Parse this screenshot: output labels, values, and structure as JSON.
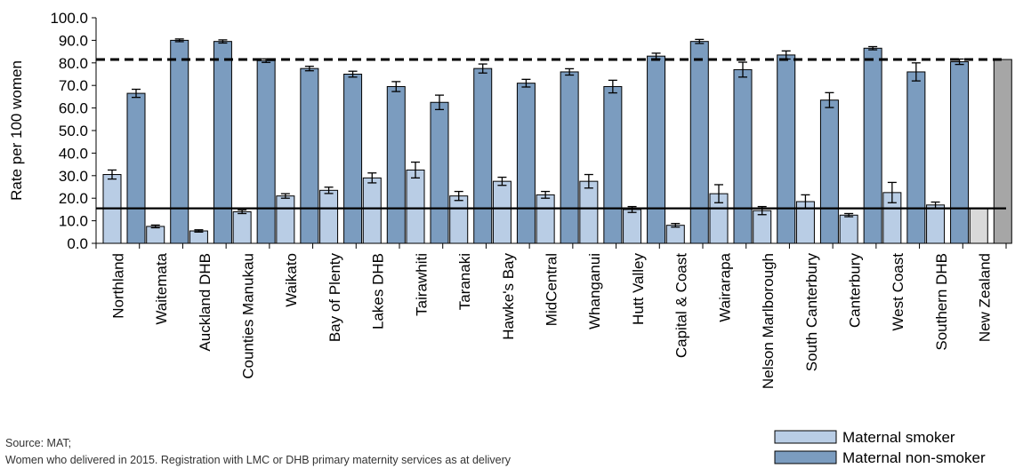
{
  "chart_data": {
    "type": "bar",
    "ylabel": "Rate per 100 women",
    "xlabel": "",
    "title": "",
    "ylim": [
      0,
      100
    ],
    "yticks": [
      "0.0",
      "10.0",
      "20.0",
      "30.0",
      "40.0",
      "50.0",
      "60.0",
      "70.0",
      "80.0",
      "90.0",
      "100.0"
    ],
    "categories": [
      "Northland",
      "Waitemata",
      "Auckland DHB",
      "Counties Manukau",
      "Waikato",
      "Bay of Plenty",
      "Lakes DHB",
      "Tairawhiti",
      "Taranaki",
      "Hawke's Bay",
      "MidCentral",
      "Whanganui",
      "Hutt Valley",
      "Capital & Coast",
      "Wairarapa",
      "Nelson Marlborough",
      "South Canterbury",
      "Canterbury",
      "West Coast",
      "Southern DHB",
      "New Zealand"
    ],
    "series": [
      {
        "name": "Maternal smoker",
        "color": "#b9cde5",
        "values": [
          30.5,
          7.5,
          5.5,
          14.0,
          21.0,
          23.5,
          29.0,
          32.5,
          21.0,
          27.5,
          21.5,
          27.5,
          15.0,
          8.0,
          22.0,
          14.5,
          18.5,
          12.5,
          22.5,
          17.0,
          15.5
        ],
        "error": [
          2.0,
          0.6,
          0.5,
          0.8,
          1.0,
          1.4,
          2.2,
          3.5,
          2.0,
          1.8,
          1.5,
          3.0,
          1.3,
          0.8,
          4.0,
          1.8,
          3.0,
          0.7,
          4.5,
          1.3,
          null
        ]
      },
      {
        "name": "Maternal non-smoker",
        "color": "#7b9cbf",
        "values": [
          66.5,
          90.0,
          89.5,
          81.0,
          77.5,
          75.0,
          69.5,
          62.5,
          77.5,
          71.0,
          76.0,
          69.5,
          83.0,
          89.5,
          77.0,
          83.5,
          63.5,
          86.5,
          76.0,
          80.5,
          81.5
        ],
        "error": [
          1.8,
          0.6,
          0.7,
          0.8,
          1.0,
          1.3,
          2.2,
          3.2,
          2.0,
          1.7,
          1.4,
          2.8,
          1.3,
          0.9,
          3.3,
          1.8,
          3.3,
          0.7,
          4.0,
          1.2,
          null
        ]
      }
    ],
    "reference_lines": [
      {
        "series": "Maternal non-smoker",
        "value": 81.5,
        "style": "dashed"
      },
      {
        "series": "Maternal smoker",
        "value": 15.5,
        "style": "solid"
      }
    ],
    "national_colors": {
      "smoker": "#d9d9d9",
      "non_smoker": "#a6a6a6"
    },
    "grid": false,
    "legend_position": "bottom-right"
  },
  "notes": {
    "source": "Source: MAT;",
    "description": "Women who delivered in 2015. Registration with LMC or DHB primary maternity services as at delivery"
  }
}
